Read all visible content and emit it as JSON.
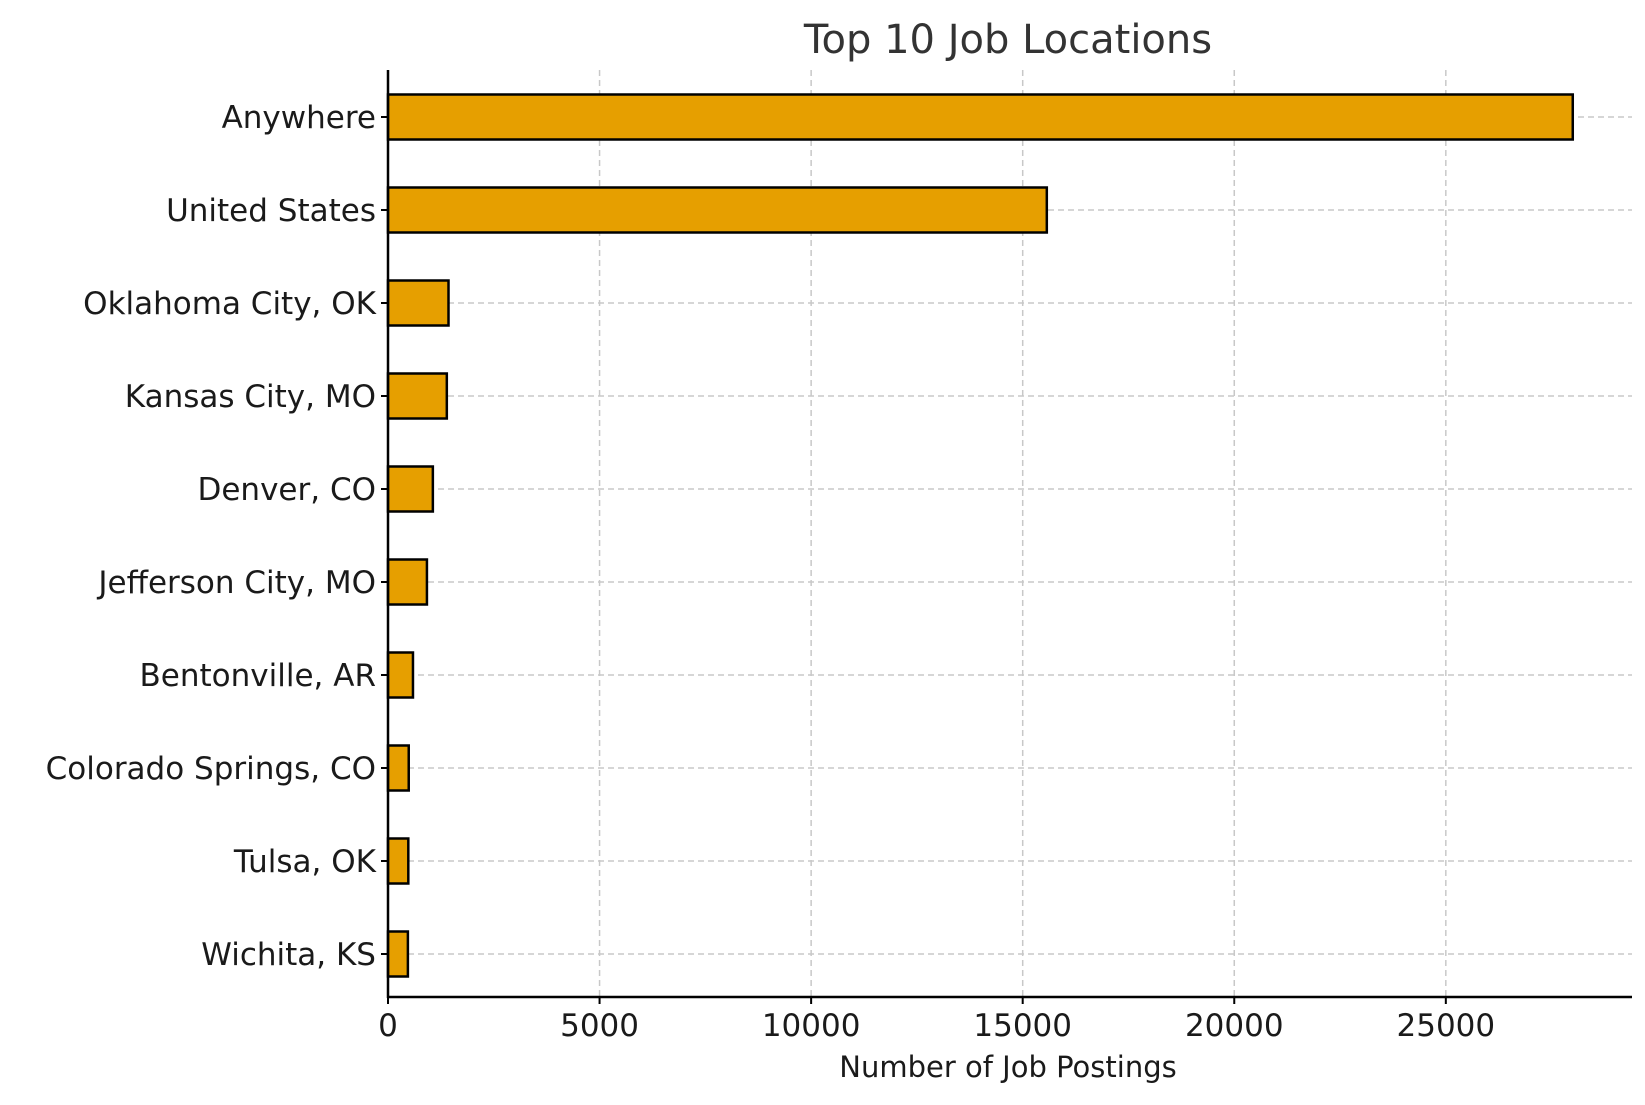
{
  "chart_data": {
    "type": "bar",
    "orientation": "horizontal",
    "title": "Top 10 Job Locations",
    "xlabel": "Number of Job Postings",
    "ylabel": "",
    "categories": [
      "Anywhere",
      "United States",
      "Oklahoma City, OK",
      "Kansas City, MO",
      "Denver, CO",
      "Jefferson City, MO",
      "Bentonville, AR",
      "Colorado Springs, CO",
      "Tulsa, OK",
      "Wichita, KS"
    ],
    "values": [
      28000,
      15570,
      1430,
      1390,
      1060,
      920,
      590,
      490,
      480,
      470
    ],
    "xlim": [
      0,
      29400
    ],
    "xticks": [
      0,
      5000,
      10000,
      15000,
      20000,
      25000
    ],
    "grid": true,
    "legend": "none",
    "colors": {
      "bar_fill": "#E69F00",
      "bar_edge": "#000000",
      "grid": "#c8c8c8",
      "axis": "#000000",
      "text": "#1a1a1a",
      "title": "#333333"
    }
  }
}
